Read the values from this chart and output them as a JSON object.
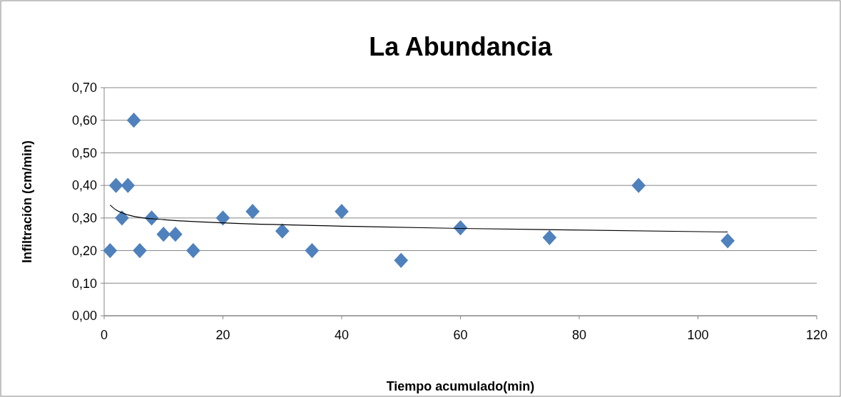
{
  "chart_data": {
    "type": "scatter",
    "title": "La Abundancia",
    "xlabel": "Tiempo acumulado(min)",
    "ylabel": "Infiltración (cm/min)",
    "xlim": [
      0,
      120
    ],
    "xticks": [
      0,
      20,
      40,
      60,
      80,
      100,
      120
    ],
    "ylim": [
      0,
      0.7
    ],
    "yticks": [
      {
        "value": 0,
        "label": "0,00"
      },
      {
        "value": 0.1,
        "label": "0,10"
      },
      {
        "value": 0.2,
        "label": "0,20"
      },
      {
        "value": 0.3,
        "label": "0,30"
      },
      {
        "value": 0.4,
        "label": "0,40"
      },
      {
        "value": 0.5,
        "label": "0,50"
      },
      {
        "value": 0.6,
        "label": "0,60"
      },
      {
        "value": 0.7,
        "label": "0,70"
      }
    ],
    "grid": "y",
    "series": [
      {
        "marker": "diamond",
        "color": "#4f81bd",
        "x": [
          1,
          2,
          3,
          4,
          5,
          6,
          8,
          10,
          12,
          15,
          20,
          25,
          30,
          35,
          40,
          50,
          60,
          75,
          90,
          105
        ],
        "values": [
          0.2,
          0.4,
          0.3,
          0.4,
          0.6,
          0.2,
          0.3,
          0.25,
          0.25,
          0.2,
          0.3,
          0.32,
          0.26,
          0.2,
          0.32,
          0.17,
          0.27,
          0.24,
          0.4,
          0.23
        ]
      },
      {
        "type": "line",
        "color": "#000000",
        "line_style": "solid",
        "x": [
          1,
          2,
          3,
          5,
          10,
          20,
          40,
          60,
          105
        ],
        "values": [
          0.34,
          0.325,
          0.316,
          0.305,
          0.295,
          0.285,
          0.275,
          0.268,
          0.257
        ]
      }
    ]
  }
}
